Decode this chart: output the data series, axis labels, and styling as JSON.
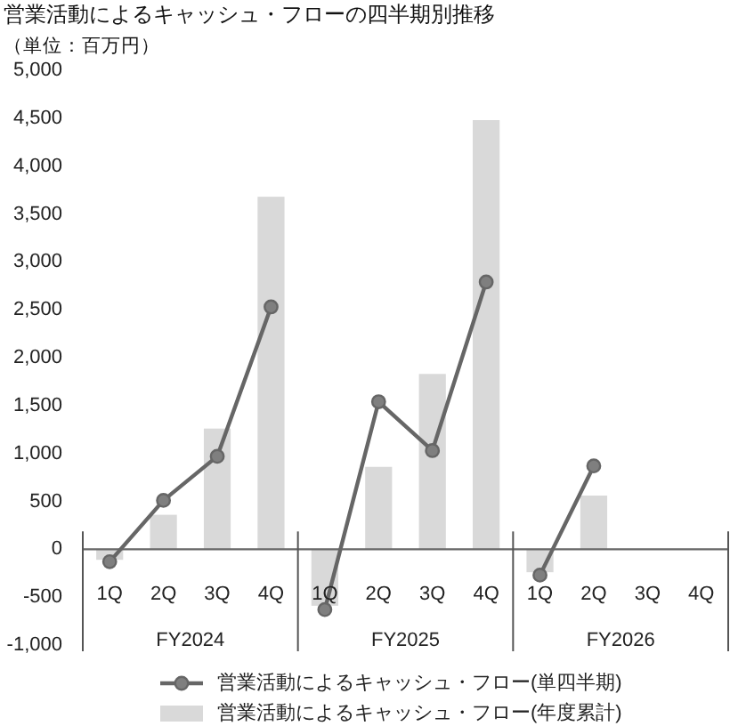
{
  "chart_data": {
    "type": "bar",
    "title": "営業活動によるキャッシュ・フローの四半期別推移",
    "subtitle": "（単位：百万円）",
    "categories": [
      "1Q",
      "2Q",
      "3Q",
      "4Q",
      "1Q",
      "2Q",
      "3Q",
      "4Q",
      "1Q",
      "2Q",
      "3Q",
      "4Q"
    ],
    "annotations": [
      "FY2024",
      "FY2025",
      "FY2026"
    ],
    "series": [
      {
        "name": "営業活動によるキャッシュ・フロー(単四半期)",
        "type": "line",
        "color": "#666666",
        "values": [
          -130,
          510,
          970,
          2530,
          -630,
          1540,
          1030,
          2790,
          -270,
          870,
          null,
          null
        ]
      },
      {
        "name": "営業活動によるキャッシュ・フロー(年度累計)",
        "color": "#d9d9d9",
        "values": [
          -110,
          360,
          1260,
          3680,
          -590,
          860,
          1830,
          4480,
          -240,
          560,
          null,
          null
        ]
      }
    ],
    "ylim": [
      -1000,
      5000
    ],
    "yticks": [
      {
        "value": -1000,
        "label": "-1,000"
      },
      -500,
      0,
      500,
      {
        "value": 1000,
        "label": "1,000"
      },
      {
        "value": 1500,
        "label": "1,500"
      },
      {
        "value": 2000,
        "label": "2,000"
      },
      {
        "value": 2500,
        "label": "2,500"
      },
      {
        "value": 3000,
        "label": "3,000"
      },
      {
        "value": 3500,
        "label": "3,500"
      },
      {
        "value": 4000,
        "label": "4,000"
      },
      {
        "value": 4500,
        "label": "4,500"
      },
      {
        "value": 5000,
        "label": "5,000"
      }
    ],
    "marker": "circle",
    "legend": "bottom"
  }
}
